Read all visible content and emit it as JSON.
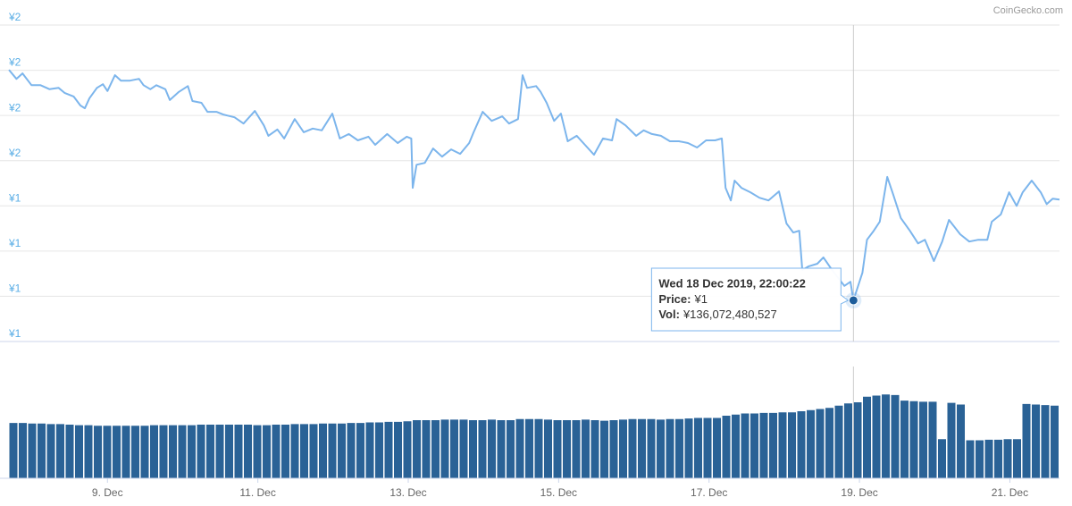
{
  "chart_data": {
    "type": "line",
    "credit": "CoinGecko.com",
    "color": "#7cb5ec",
    "x": [
      7.69,
      7.79,
      7.87,
      7.99,
      8.11,
      8.23,
      8.35,
      8.43,
      8.55,
      8.64,
      8.7,
      8.76,
      8.86,
      8.94,
      9.0,
      9.1,
      9.18,
      9.3,
      9.42,
      9.48,
      9.57,
      9.65,
      9.77,
      9.83,
      9.95,
      10.07,
      10.13,
      10.25,
      10.33,
      10.45,
      10.54,
      10.69,
      10.81,
      10.96,
      11.08,
      11.14,
      11.26,
      11.35,
      11.49,
      11.61,
      11.73,
      11.85,
      11.99,
      12.09,
      12.21,
      12.33,
      12.47,
      12.56,
      12.72,
      12.86,
      12.98,
      13.04,
      13.06,
      13.11,
      13.22,
      13.33,
      13.45,
      13.57,
      13.69,
      13.81,
      13.87,
      13.99,
      14.11,
      14.25,
      14.34,
      14.46,
      14.52,
      14.58,
      14.7,
      14.76,
      14.84,
      14.94,
      15.03,
      15.12,
      15.24,
      15.35,
      15.47,
      15.59,
      15.71,
      15.77,
      15.89,
      16.03,
      16.13,
      16.24,
      16.36,
      16.48,
      16.6,
      16.72,
      16.84,
      16.96,
      17.08,
      17.17,
      17.22,
      17.29,
      17.34,
      17.43,
      17.55,
      17.67,
      17.79,
      17.93,
      18.03,
      18.12,
      18.2,
      18.24,
      18.32,
      18.44,
      18.52,
      18.62,
      18.71,
      18.8,
      18.88,
      18.92,
      19.04,
      19.1,
      19.19,
      19.27,
      19.37,
      19.45,
      19.55,
      19.67,
      19.78,
      19.87,
      19.99,
      20.1,
      20.19,
      20.34,
      20.46,
      20.58,
      20.7,
      20.76,
      20.88,
      20.99,
      21.09,
      21.17,
      21.29,
      21.41,
      21.49,
      21.57,
      21.66
    ],
    "values": [
      1.701,
      1.681,
      1.693,
      1.667,
      1.667,
      1.658,
      1.661,
      1.65,
      1.642,
      1.622,
      1.616,
      1.638,
      1.661,
      1.669,
      1.654,
      1.689,
      1.677,
      1.677,
      1.681,
      1.667,
      1.658,
      1.667,
      1.658,
      1.634,
      1.652,
      1.665,
      1.632,
      1.628,
      1.608,
      1.608,
      1.602,
      1.596,
      1.582,
      1.61,
      1.578,
      1.555,
      1.569,
      1.549,
      1.592,
      1.563,
      1.571,
      1.567,
      1.604,
      1.549,
      1.559,
      1.545,
      1.553,
      1.535,
      1.559,
      1.539,
      1.553,
      1.549,
      1.44,
      1.491,
      1.495,
      1.527,
      1.509,
      1.525,
      1.515,
      1.539,
      1.563,
      1.608,
      1.588,
      1.598,
      1.582,
      1.592,
      1.689,
      1.661,
      1.665,
      1.652,
      1.628,
      1.588,
      1.604,
      1.543,
      1.555,
      1.535,
      1.513,
      1.549,
      1.545,
      1.592,
      1.578,
      1.555,
      1.567,
      1.559,
      1.555,
      1.543,
      1.543,
      1.539,
      1.529,
      1.545,
      1.545,
      1.549,
      1.44,
      1.412,
      1.456,
      1.44,
      1.43,
      1.418,
      1.412,
      1.432,
      1.361,
      1.341,
      1.345,
      1.258,
      1.266,
      1.272,
      1.286,
      1.262,
      1.242,
      1.223,
      1.232,
      1.191,
      1.252,
      1.325,
      1.345,
      1.365,
      1.464,
      1.424,
      1.373,
      1.345,
      1.317,
      1.325,
      1.278,
      1.321,
      1.369,
      1.337,
      1.321,
      1.325,
      1.325,
      1.365,
      1.381,
      1.43,
      1.4,
      1.43,
      1.456,
      1.43,
      1.404,
      1.416,
      1.414
    ],
    "xlim": [
      7.69,
      21.66
    ],
    "xticks": [
      {
        "value": 9,
        "label": "9. Dec"
      },
      {
        "value": 11,
        "label": "11. Dec"
      },
      {
        "value": 13,
        "label": "13. Dec"
      },
      {
        "value": 15,
        "label": "15. Dec"
      },
      {
        "value": 17,
        "label": "17. Dec"
      },
      {
        "value": 19,
        "label": "19. Dec"
      },
      {
        "value": 21,
        "label": "21. Dec"
      }
    ],
    "ylim": [
      1.1,
      1.8
    ],
    "yticks": [
      {
        "value": 1.1,
        "label": "¥1"
      },
      {
        "value": 1.2,
        "label": "¥1"
      },
      {
        "value": 1.3,
        "label": "¥1"
      },
      {
        "value": 1.4,
        "label": "¥1"
      },
      {
        "value": 1.5,
        "label": "¥2"
      },
      {
        "value": 1.6,
        "label": "¥2"
      },
      {
        "value": 1.7,
        "label": "¥2"
      },
      {
        "value": 1.8,
        "label": "¥2"
      }
    ],
    "grid": true,
    "volume": {
      "type": "bar",
      "color": "#2a6296",
      "ylim": [
        0,
        200000000000.0
      ],
      "values": [
        99000000000.0,
        99000000000.0,
        98000000000.0,
        98000000000.0,
        97000000000.0,
        97000000000.0,
        96000000000.0,
        95000000000.0,
        95000000000.0,
        94000000000.0,
        94000000000.0,
        94000000000.0,
        94000000000.0,
        94000000000.0,
        94000000000.0,
        95000000000.0,
        95000000000.0,
        95000000000.0,
        95000000000.0,
        95000000000.0,
        96000000000.0,
        96000000000.0,
        96000000000.0,
        96000000000.0,
        96000000000.0,
        96000000000.0,
        95000000000.0,
        95000000000.0,
        96000000000.0,
        96000000000.0,
        97000000000.0,
        97000000000.0,
        97000000000.0,
        98000000000.0,
        98000000000.0,
        98000000000.0,
        99000000000.0,
        99000000000.0,
        100000000000.0,
        100000000000.0,
        101000000000.0,
        101000000000.0,
        102000000000.0,
        104000000000.0,
        104000000000.0,
        104000000000.0,
        105000000000.0,
        105000000000.0,
        105000000000.0,
        104000000000.0,
        104000000000.0,
        105000000000.0,
        104000000000.0,
        104000000000.0,
        106000000000.0,
        106000000000.0,
        106000000000.0,
        105000000000.0,
        104000000000.0,
        104000000000.0,
        104000000000.0,
        105000000000.0,
        104000000000.0,
        103000000000.0,
        104000000000.0,
        105000000000.0,
        106000000000.0,
        106000000000.0,
        106000000000.0,
        105000000000.0,
        106000000000.0,
        106000000000.0,
        107000000000.0,
        108000000000.0,
        108000000000.0,
        108000000000.0,
        112000000000.0,
        114000000000.0,
        116000000000.0,
        116000000000.0,
        117000000000.0,
        117000000000.0,
        118000000000.0,
        118000000000.0,
        120000000000.0,
        122000000000.0,
        124000000000.0,
        126000000000.0,
        130000000000.0,
        134000000000.0,
        136000000000.0,
        146000000000.0,
        148000000000.0,
        150000000000.0,
        149000000000.0,
        139000000000.0,
        138000000000.0,
        137000000000.0,
        137000000000.0,
        70000000000.0,
        135000000000.0,
        132000000000.0,
        68000000000.0,
        68000000000.0,
        69000000000.0,
        69000000000.0,
        70000000000.0,
        70000000000.0,
        133000000000.0,
        132000000000.0,
        131000000000.0,
        130000000000.0
      ]
    },
    "tooltip": {
      "x": 18.92,
      "title": "Wed 18 Dec 2019, 22:00:22",
      "price_label": "Price:",
      "price": "¥1",
      "vol_label": "Vol:",
      "vol": "¥136,072,480,527"
    }
  }
}
